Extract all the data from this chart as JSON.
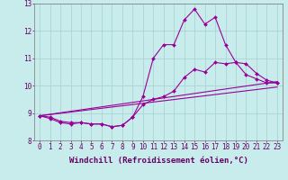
{
  "xlabel": "Windchill (Refroidissement éolien,°C)",
  "background_color": "#c8ecec",
  "grid_color": "#aad4d4",
  "line_color": "#990099",
  "series": [
    {
      "x": [
        0,
        1,
        2,
        3,
        4,
        5,
        6,
        7,
        8,
        9,
        10,
        11,
        12,
        13,
        14,
        15,
        16,
        17,
        18,
        19,
        20,
        21,
        22,
        23
      ],
      "y": [
        8.9,
        8.85,
        8.7,
        8.65,
        8.65,
        8.6,
        8.6,
        8.5,
        8.55,
        8.85,
        9.6,
        11.0,
        11.5,
        11.5,
        12.4,
        12.8,
        12.25,
        12.5,
        11.5,
        10.85,
        10.4,
        10.25,
        10.1,
        10.1
      ]
    },
    {
      "x": [
        0,
        1,
        2,
        3,
        4,
        5,
        6,
        7,
        8,
        9,
        10,
        11,
        12,
        13,
        14,
        15,
        16,
        17,
        18,
        19,
        20,
        21,
        22,
        23
      ],
      "y": [
        8.9,
        8.8,
        8.65,
        8.6,
        8.65,
        8.6,
        8.6,
        8.5,
        8.55,
        8.85,
        9.3,
        9.5,
        9.6,
        9.8,
        10.3,
        10.6,
        10.5,
        10.85,
        10.8,
        10.85,
        10.8,
        10.45,
        10.2,
        10.1
      ]
    },
    {
      "x": [
        0,
        23
      ],
      "y": [
        8.9,
        10.15
      ]
    },
    {
      "x": [
        0,
        23
      ],
      "y": [
        8.9,
        9.95
      ]
    }
  ],
  "ylim": [
    8.0,
    13.0
  ],
  "xlim": [
    -0.5,
    23.5
  ],
  "yticks": [
    8,
    9,
    10,
    11,
    12,
    13
  ],
  "xticks": [
    0,
    1,
    2,
    3,
    4,
    5,
    6,
    7,
    8,
    9,
    10,
    11,
    12,
    13,
    14,
    15,
    16,
    17,
    18,
    19,
    20,
    21,
    22,
    23
  ],
  "tick_fontsize": 5.5,
  "xlabel_fontsize": 6.5,
  "marker": "D",
  "markersize": 2.0,
  "linewidth": 0.8
}
